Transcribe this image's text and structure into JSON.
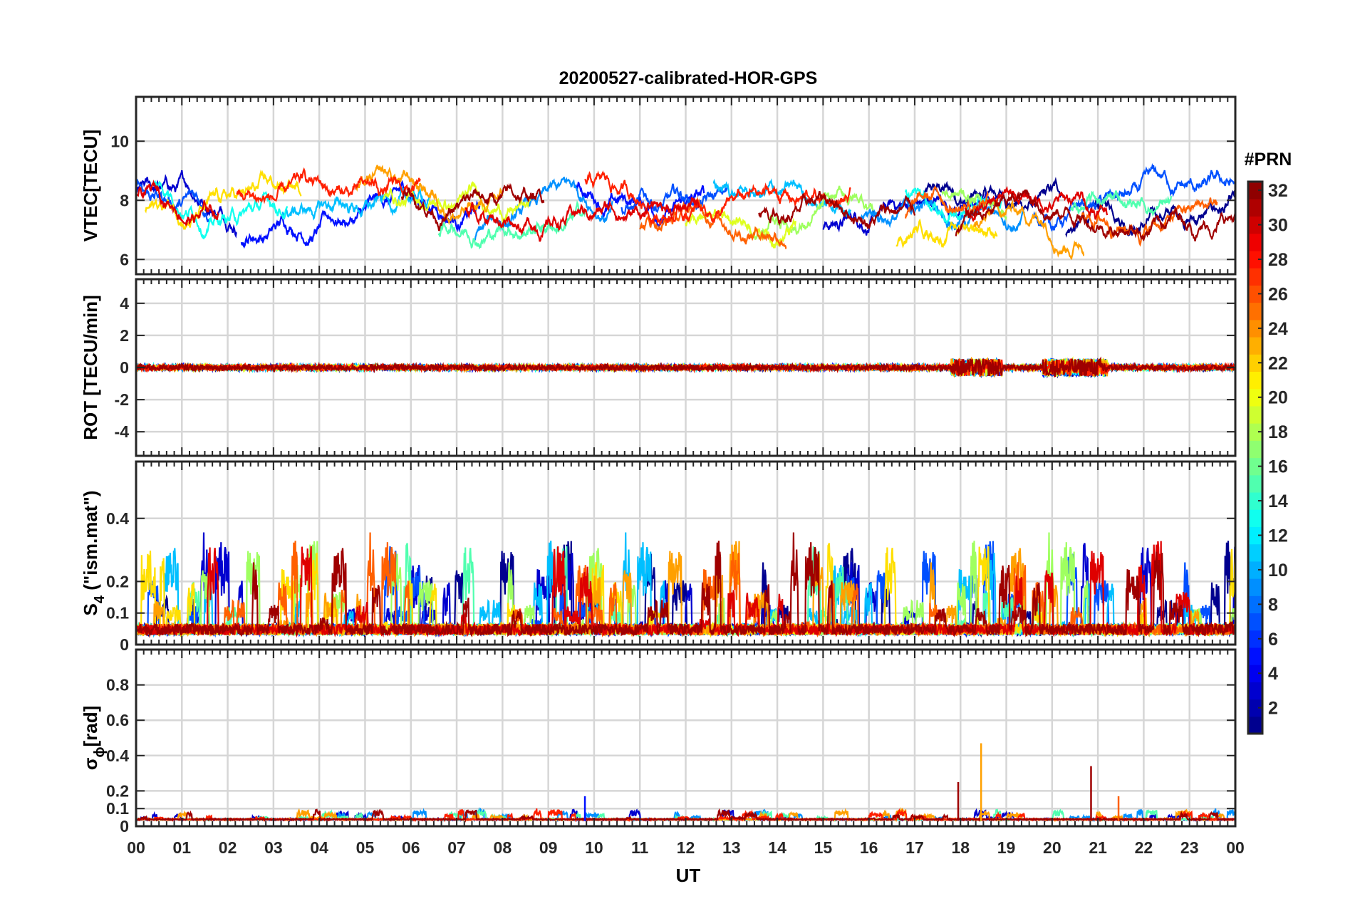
{
  "chart_data": {
    "type": "line",
    "title": "20200527-calibrated-HOR-GPS",
    "xlabel": "UT",
    "x_range_hours": [
      0,
      24
    ],
    "x_tick_labels": [
      "00",
      "01",
      "02",
      "03",
      "04",
      "05",
      "06",
      "07",
      "08",
      "09",
      "10",
      "11",
      "12",
      "13",
      "14",
      "15",
      "16",
      "17",
      "18",
      "19",
      "20",
      "21",
      "22",
      "23",
      "00"
    ],
    "panels": [
      {
        "id": "vtec",
        "ylabel": "VTEC[TECU]",
        "ylim": [
          5.5,
          11.5
        ],
        "y_ticks": [
          6,
          8,
          10
        ],
        "y_tick_labels": [
          "6",
          "8",
          "10"
        ],
        "signal": {
          "kind": "wander",
          "base": 7.8,
          "amplitude": 1.3,
          "noise": 0.12,
          "min": 5.5,
          "max": 11.5
        },
        "series": [
          {
            "prn": 1,
            "segments": [
              [
                17.2,
                20.2
              ],
              [
                20.3,
                24.0
              ]
            ],
            "color": "#00008F"
          },
          {
            "prn": 3,
            "segments": [
              [
                0.0,
                2.2
              ],
              [
                15.0,
                18.8
              ]
            ],
            "color": "#0000CF"
          },
          {
            "prn": 5,
            "segments": [
              [
                2.3,
                7.5
              ],
              [
                9.6,
                12.4
              ]
            ],
            "color": "#0010FF"
          },
          {
            "prn": 7,
            "segments": [
              [
                0.0,
                1.6
              ],
              [
                10.6,
                12.9
              ],
              [
                19.6,
                24.0
              ]
            ],
            "color": "#0050FF"
          },
          {
            "prn": 9,
            "segments": [
              [
                7.4,
                10.4
              ],
              [
                15.8,
                19.4
              ]
            ],
            "color": "#0090FF"
          },
          {
            "prn": 11,
            "segments": [
              [
                3.2,
                6.4
              ],
              [
                12.6,
                15.6
              ]
            ],
            "color": "#00BFFF"
          },
          {
            "prn": 13,
            "segments": [
              [
                0.4,
                3.3
              ],
              [
                16.8,
                18.9
              ]
            ],
            "color": "#10FFEF"
          },
          {
            "prn": 15,
            "segments": [
              [
                6.6,
                9.8
              ],
              [
                20.4,
                22.6
              ]
            ],
            "color": "#50FFAF"
          },
          {
            "prn": 17,
            "segments": [
              [
                13.4,
                16.1
              ],
              [
                17.6,
                19.0
              ]
            ],
            "color": "#9FFF60"
          },
          {
            "prn": 19,
            "segments": [
              [
                5.4,
                8.6
              ],
              [
                12.0,
                14.4
              ]
            ],
            "color": "#DFFF20"
          },
          {
            "prn": 21,
            "segments": [
              [
                0.2,
                3.6
              ],
              [
                16.6,
                18.8
              ]
            ],
            "color": "#FFDF00"
          },
          {
            "prn": 23,
            "segments": [
              [
                4.8,
                8.0
              ],
              [
                18.3,
                20.7
              ]
            ],
            "color": "#FFA000"
          },
          {
            "prn": 25,
            "segments": [
              [
                11.0,
                14.2
              ],
              [
                16.8,
                18.6
              ],
              [
                20.6,
                23.6
              ]
            ],
            "color": "#FF6000"
          },
          {
            "prn": 27,
            "segments": [
              [
                2.2,
                6.2
              ],
              [
                9.8,
                15.6
              ]
            ],
            "color": "#FF2000"
          },
          {
            "prn": 29,
            "segments": [
              [
                0.0,
                1.8
              ],
              [
                7.2,
                12.3
              ],
              [
                18.1,
                21.2
              ]
            ],
            "color": "#DF0000"
          },
          {
            "prn": 31,
            "segments": [
              [
                5.8,
                8.9
              ],
              [
                13.6,
                17.0
              ],
              [
                17.9,
                24.0
              ]
            ],
            "color": "#9F0000"
          }
        ]
      },
      {
        "id": "rot",
        "ylabel": "ROT [TECU/min]",
        "ylim": [
          -5.5,
          5.5
        ],
        "y_ticks": [
          -4,
          -2,
          0,
          2,
          4
        ],
        "y_tick_labels": [
          "-4",
          "-2",
          "0",
          "2",
          "4"
        ],
        "signal": {
          "kind": "noise",
          "base": 0.0,
          "amplitude": 0.18,
          "burst": 1.6,
          "burst_windows": [
            [
              17.8,
              18.9
            ],
            [
              19.8,
              21.2
            ]
          ],
          "min": -5.5,
          "max": 5.5
        },
        "series": [
          {
            "prn": 1,
            "segments": [
              [
                0.0,
                24.0
              ]
            ],
            "color": "#00008F"
          },
          {
            "prn": 5,
            "segments": [
              [
                0.0,
                24.0
              ]
            ],
            "color": "#0010FF"
          },
          {
            "prn": 9,
            "segments": [
              [
                0.0,
                24.0
              ]
            ],
            "color": "#0090FF"
          },
          {
            "prn": 13,
            "segments": [
              [
                0.0,
                24.0
              ]
            ],
            "color": "#10FFEF"
          },
          {
            "prn": 19,
            "segments": [
              [
                0.0,
                24.0
              ]
            ],
            "color": "#DFFF20"
          },
          {
            "prn": 23,
            "segments": [
              [
                0.0,
                24.0
              ]
            ],
            "color": "#FFA000"
          },
          {
            "prn": 27,
            "segments": [
              [
                0.0,
                24.0
              ]
            ],
            "color": "#FF2000"
          },
          {
            "prn": 31,
            "segments": [
              [
                0.0,
                24.0
              ]
            ],
            "color": "#9F0000"
          }
        ]
      },
      {
        "id": "s4",
        "ylabel_main": "S",
        "ylabel_sub": "4",
        "ylabel_tail": " (\"ism.mat\")",
        "ylim": [
          0,
          0.58
        ],
        "y_ticks": [
          0,
          0.1,
          0.2,
          0.4
        ],
        "y_tick_labels": [
          "0",
          "0.1",
          "0.2",
          "0.4"
        ],
        "signal": {
          "kind": "spiky",
          "base": 0.03,
          "amplitude": 0.06,
          "spike": 0.3,
          "min": 0,
          "max": 0.58
        },
        "series": [
          {
            "prn": 1,
            "segments": [
              [
                0.0,
                24.0
              ]
            ],
            "color": "#00008F"
          },
          {
            "prn": 3,
            "segments": [
              [
                0.0,
                24.0
              ]
            ],
            "color": "#0000CF"
          },
          {
            "prn": 7,
            "segments": [
              [
                0.0,
                24.0
              ]
            ],
            "color": "#0050FF"
          },
          {
            "prn": 11,
            "segments": [
              [
                0.0,
                24.0
              ]
            ],
            "color": "#00BFFF"
          },
          {
            "prn": 15,
            "segments": [
              [
                0.0,
                24.0
              ]
            ],
            "color": "#50FFAF"
          },
          {
            "prn": 17,
            "segments": [
              [
                0.0,
                24.0
              ]
            ],
            "color": "#9FFF60"
          },
          {
            "prn": 21,
            "segments": [
              [
                0.0,
                24.0
              ]
            ],
            "color": "#FFDF00"
          },
          {
            "prn": 23,
            "segments": [
              [
                0.0,
                24.0
              ]
            ],
            "color": "#FFA000"
          },
          {
            "prn": 25,
            "segments": [
              [
                0.0,
                24.0
              ]
            ],
            "color": "#FF6000"
          },
          {
            "prn": 29,
            "segments": [
              [
                0.0,
                24.0
              ]
            ],
            "color": "#DF0000"
          },
          {
            "prn": 31,
            "segments": [
              [
                0.0,
                24.0
              ]
            ],
            "color": "#9F0000"
          }
        ]
      },
      {
        "id": "sigma_phi",
        "ylabel_main": "σ",
        "ylabel_sub": "ϕ",
        "ylabel_tail": "[rad]",
        "ylim": [
          0,
          1.0
        ],
        "y_ticks": [
          0,
          0.1,
          0.2,
          0.4,
          0.6,
          0.8
        ],
        "y_tick_labels": [
          "0",
          "0.1",
          "0.2",
          "0.4",
          "0.6",
          "0.8"
        ],
        "signal": {
          "kind": "spiky",
          "base": 0.035,
          "amplitude": 0.012,
          "spike": 0.06,
          "min": 0,
          "max": 1.0
        },
        "peaks": [
          {
            "prn": 31,
            "t": 17.95,
            "value": 0.25,
            "color": "#9F0000"
          },
          {
            "prn": 23,
            "t": 18.45,
            "value": 0.47,
            "color": "#FFA000"
          },
          {
            "prn": 31,
            "t": 20.85,
            "value": 0.34,
            "color": "#9F0000"
          },
          {
            "prn": 9,
            "t": 9.8,
            "value": 0.17,
            "color": "#0010FF"
          },
          {
            "prn": 25,
            "t": 21.45,
            "value": 0.17,
            "color": "#FF6000"
          }
        ],
        "series": [
          {
            "prn": 3,
            "segments": [
              [
                0.0,
                24.0
              ]
            ],
            "color": "#0000CF"
          },
          {
            "prn": 9,
            "segments": [
              [
                0.0,
                24.0
              ]
            ],
            "color": "#0090FF"
          },
          {
            "prn": 15,
            "segments": [
              [
                0.0,
                24.0
              ]
            ],
            "color": "#50FFAF"
          },
          {
            "prn": 23,
            "segments": [
              [
                0.0,
                24.0
              ]
            ],
            "color": "#FFA000"
          },
          {
            "prn": 27,
            "segments": [
              [
                0.0,
                24.0
              ]
            ],
            "color": "#FF2000"
          },
          {
            "prn": 31,
            "segments": [
              [
                0.0,
                24.0
              ]
            ],
            "color": "#9F0000"
          }
        ]
      }
    ],
    "colorbar": {
      "title": "#PRN",
      "range": [
        1,
        32
      ],
      "ticks": [
        2,
        4,
        6,
        8,
        10,
        12,
        14,
        16,
        18,
        20,
        22,
        24,
        26,
        28,
        30,
        32
      ],
      "tick_labels": [
        "2",
        "4",
        "6",
        "8",
        "10",
        "12",
        "14",
        "16",
        "18",
        "20",
        "22",
        "24",
        "26",
        "28",
        "30",
        "32"
      ],
      "colormap": "jet",
      "levels": 32
    }
  }
}
